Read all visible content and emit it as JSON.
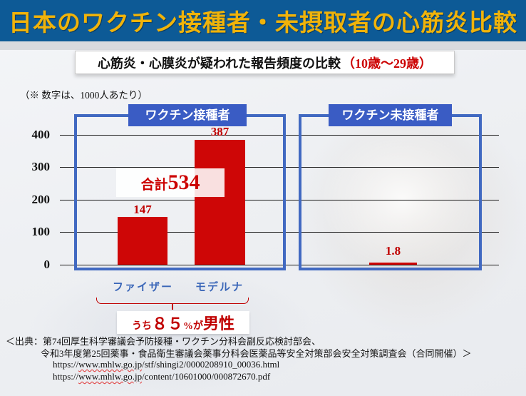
{
  "banner": {
    "title": "日本のワクチン接種者・未摂取者の心筋炎比較"
  },
  "subtitle": {
    "main": "心筋炎・心膜炎が疑われた報告頻度の比較",
    "age_range": "（10歳～29歳）"
  },
  "unit_note": "（※ 数字は、1000人あたり）",
  "axis": {
    "ticks": [
      "400",
      "300",
      "200",
      "100",
      "0"
    ]
  },
  "chart_data": [
    {
      "type": "bar",
      "title": "ワクチン接種者",
      "categories": [
        "ファイザー",
        "モデルナ"
      ],
      "values": [
        147,
        387
      ],
      "value_labels": [
        "147",
        "387"
      ],
      "total_prefix": "合計",
      "total": "534",
      "ylim": [
        0,
        400
      ],
      "yticks": [
        0,
        100,
        200,
        300,
        400
      ],
      "grid": true,
      "bar_color": "#ce0606",
      "unit": "1000人あたり",
      "annotation": "うち８５%が男性"
    },
    {
      "type": "bar",
      "title": "ワクチン未接種者",
      "categories": [
        "ワクチン未接種者"
      ],
      "values": [
        1.8
      ],
      "value_labels": [
        "1.8"
      ],
      "ylim": [
        0,
        400
      ],
      "yticks": [
        0,
        100,
        200,
        300,
        400
      ],
      "grid": true,
      "bar_color": "#ce0606",
      "unit": "1000人あたり"
    }
  ],
  "male_note": {
    "part1": "うち",
    "part2": "８５",
    "part3": "%が",
    "part4": "男性"
  },
  "source": {
    "line1": "＜出典：第74回厚生科学審議会予防接種・ワクチン分科会副反応検討部会、",
    "line2": "令和3年度第25回薬事・食品衛生審議会薬事分科会医薬品等安全対策部会安全対策調査会（合同開催）＞",
    "url1": {
      "prefix": "https://",
      "domain": "www.mhlw.go.jp",
      "path": "/stf/shingi2/0000208910_00036.html"
    },
    "url2": {
      "prefix": "https://",
      "domain": "www.mhlw.go.jp",
      "path": "/content/10601000/000872670.pdf"
    }
  },
  "colors": {
    "banner_bg": "#0d5a96",
    "banner_text": "#f0b30a",
    "panel_border": "#4169c1",
    "panel_header_bg": "#3a5cc4",
    "bar_red": "#ce0606",
    "accent_red": "#c00000",
    "xlabel_blue": "#3a66b8"
  }
}
